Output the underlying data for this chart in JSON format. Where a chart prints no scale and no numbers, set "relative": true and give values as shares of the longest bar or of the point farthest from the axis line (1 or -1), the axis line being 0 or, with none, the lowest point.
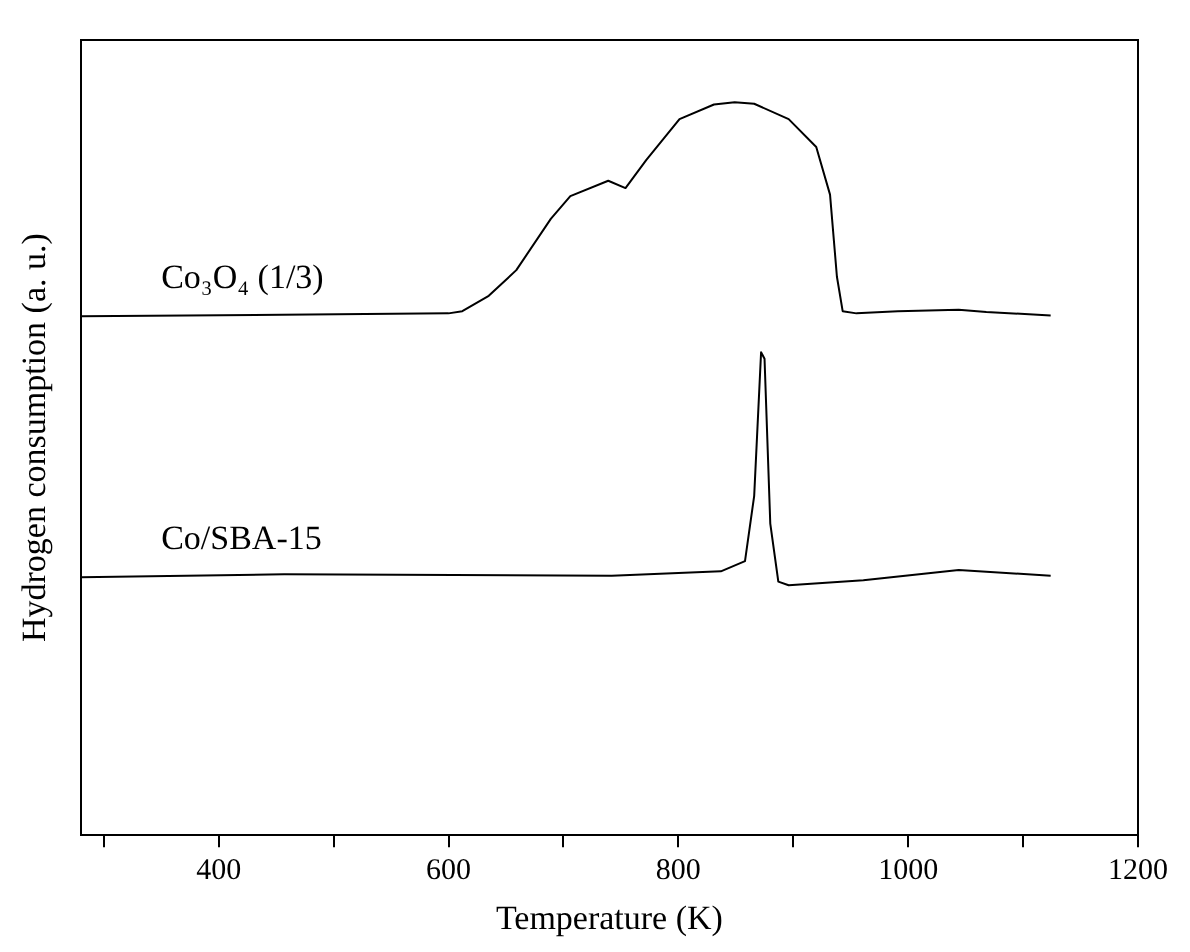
{
  "chart_data": {
    "type": "line",
    "xlabel": "Temperature (K)",
    "ylabel": "Hydrogen consumption (a. u.)",
    "relative": true,
    "xlim": [
      280,
      1200
    ],
    "xticks": [
      {
        "value": 300,
        "label": null
      },
      400,
      {
        "value": 500,
        "label": null
      },
      600,
      {
        "value": 700,
        "label": null
      },
      800,
      {
        "value": 900,
        "label": null
      },
      1000,
      {
        "value": 1100,
        "label": null
      },
      1200
    ],
    "legend": false,
    "grid": false,
    "marker": "none",
    "line_style": "solid",
    "series": [
      {
        "name": "Co₃O₄ (1/3)",
        "color": "#000000",
        "x": [
          280,
          600,
          612,
          635,
          659,
          689,
          706,
          739,
          754,
          772,
          801,
          831,
          849,
          866,
          896,
          920,
          932,
          938,
          943,
          955,
          991,
          1044,
          1068,
          1124
        ],
        "values": [
          0.708,
          0.712,
          0.715,
          0.736,
          0.771,
          0.841,
          0.872,
          0.893,
          0.883,
          0.921,
          0.977,
          0.997,
          1.0,
          0.998,
          0.977,
          0.939,
          0.874,
          0.762,
          0.715,
          0.712,
          0.715,
          0.717,
          0.714,
          0.709
        ]
      },
      {
        "name": "Co/SBA-15",
        "color": "#000000",
        "x": [
          280,
          457,
          742,
          837,
          858,
          866,
          872,
          875,
          880,
          887,
          896,
          961,
          1044,
          1124
        ],
        "values": [
          0.352,
          0.356,
          0.354,
          0.36,
          0.374,
          0.463,
          0.659,
          0.65,
          0.425,
          0.346,
          0.341,
          0.348,
          0.362,
          0.354
        ]
      }
    ]
  }
}
